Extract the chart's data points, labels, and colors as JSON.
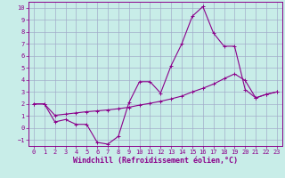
{
  "xlabel": "Windchill (Refroidissement éolien,°C)",
  "xlim": [
    -0.5,
    23.5
  ],
  "ylim": [
    -1.5,
    10.5
  ],
  "xticks": [
    0,
    1,
    2,
    3,
    4,
    5,
    6,
    7,
    8,
    9,
    10,
    11,
    12,
    13,
    14,
    15,
    16,
    17,
    18,
    19,
    20,
    21,
    22,
    23
  ],
  "yticks": [
    -1,
    0,
    1,
    2,
    3,
    4,
    5,
    6,
    7,
    8,
    9,
    10
  ],
  "background_color": "#c8ede8",
  "line_color": "#8b008b",
  "grid_color": "#a0a8c8",
  "line1_x": [
    0,
    1,
    2,
    3,
    4,
    5,
    6,
    7,
    8,
    9,
    10,
    11,
    12,
    13,
    14,
    15,
    16,
    17,
    18,
    19,
    20,
    21,
    22,
    23
  ],
  "line1_y": [
    2.0,
    2.0,
    0.5,
    0.7,
    0.3,
    0.3,
    -1.2,
    -1.35,
    -0.7,
    2.1,
    3.85,
    3.85,
    2.9,
    5.2,
    7.0,
    9.3,
    10.1,
    7.9,
    6.8,
    6.8,
    3.2,
    2.5,
    2.8,
    3.0
  ],
  "line2_x": [
    0,
    1,
    2,
    3,
    4,
    5,
    6,
    7,
    8,
    9,
    10,
    11,
    12,
    13,
    14,
    15,
    16,
    17,
    18,
    19,
    20,
    21,
    22,
    23
  ],
  "line2_y": [
    2.0,
    2.0,
    1.05,
    1.15,
    1.25,
    1.35,
    1.42,
    1.5,
    1.6,
    1.72,
    1.9,
    2.05,
    2.22,
    2.42,
    2.65,
    3.0,
    3.3,
    3.65,
    4.1,
    4.5,
    3.95,
    2.5,
    2.8,
    3.0
  ]
}
